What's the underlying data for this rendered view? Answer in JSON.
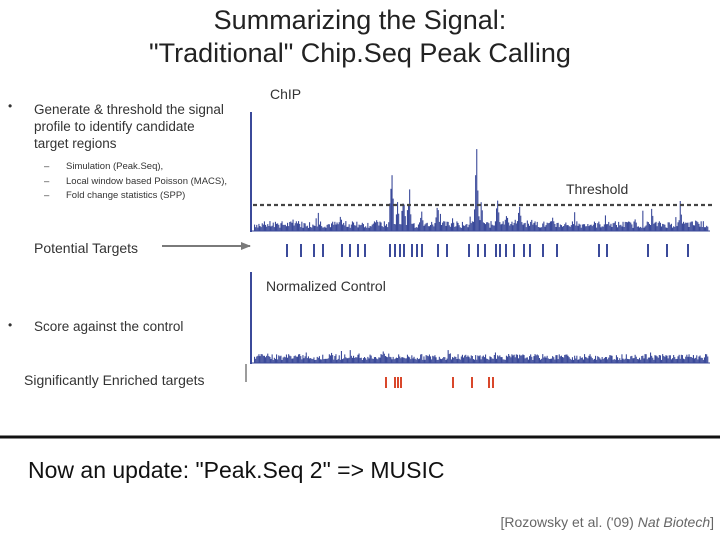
{
  "title_line1": "Summarizing the Signal:",
  "title_line2": "\"Traditional\" Chip.Seq Peak Calling",
  "bullet1": {
    "text_line1": "Generate & threshold the signal",
    "text_line2": "profile to identify candidate",
    "text_line3": "target regions",
    "subitems": [
      "Simulation (Peak.Seq),",
      "Local window based Poisson (MACS),",
      "Fold change statistics (SPP)"
    ]
  },
  "bullet2": {
    "text": "Score against the control"
  },
  "labels": {
    "chip": "ChIP",
    "threshold": "Threshold",
    "potential_targets": "Potential Targets",
    "normalized_control": "Normalized Control",
    "enriched_targets": "Significantly Enriched targets"
  },
  "update_text": "Now an update: \"Peak.Seq 2\" => MUSIC",
  "citation": {
    "prefix": "[Rozowsky et al. ('09) ",
    "journal": "Nat Biotech",
    "suffix": "]"
  },
  "colors": {
    "signal": "#3b4a9a",
    "enriched": "#d9472b",
    "threshold": "#444444",
    "divider": "#111111"
  }
}
